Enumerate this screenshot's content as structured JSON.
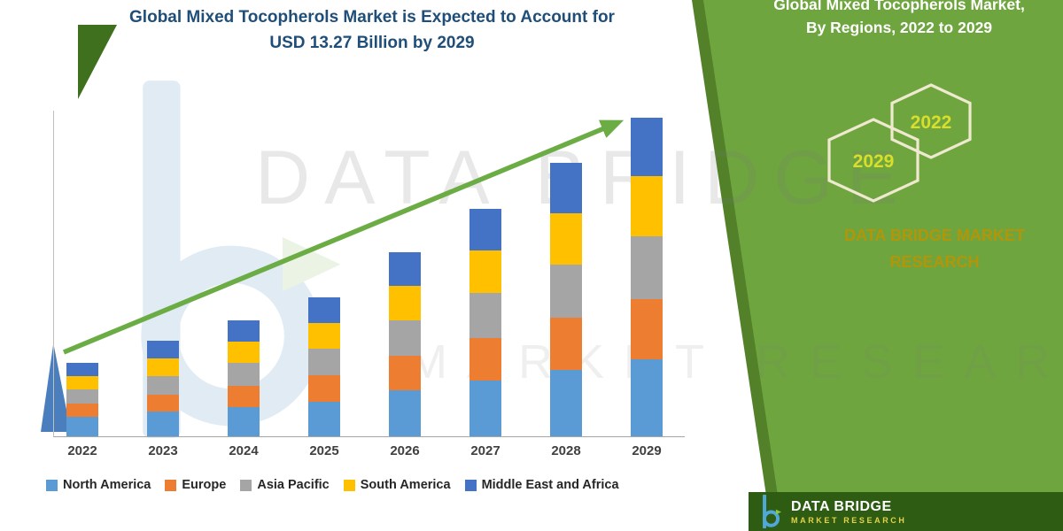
{
  "main_title": {
    "line1": "Global Mixed Tocopherols Market is Expected to Account for",
    "line2": "USD 13.27 Billion by 2029"
  },
  "right_panel": {
    "title_line1": "Global Mixed Tocopherols Market,",
    "title_line2": "By Regions, 2022 to 2029",
    "hexagon_left_label": "2029",
    "hexagon_right_label": "2022",
    "brand_line1": "DATA BRIDGE MARKET",
    "brand_line2": "RESEARCH",
    "panel_color": "#6FA53F",
    "brand_text_color": "#B3950A",
    "hexagon_label_color": "#D9DE2B"
  },
  "footer": {
    "brand": "DATA BRIDGE",
    "tagline": "MARKET RESEARCH",
    "bar_color": "#2E5C13"
  },
  "watermark": {
    "line1": "DATA BRIDGE",
    "line2": "MARKET RESEARCH"
  },
  "chart_data": {
    "type": "bar",
    "stacked": true,
    "title": "Global Mixed Tocopherols Market is Expected to Account for USD 13.27 Billion by 2029",
    "unit": "USD Billion",
    "categories": [
      "2022",
      "2023",
      "2024",
      "2025",
      "2026",
      "2027",
      "2028",
      "2029"
    ],
    "series": [
      {
        "name": "North America",
        "color": "#5B9BD5",
        "values": [
          0.82,
          1.02,
          1.22,
          1.45,
          1.9,
          2.32,
          2.77,
          3.2
        ]
      },
      {
        "name": "Europe",
        "color": "#ED7D31",
        "values": [
          0.55,
          0.73,
          0.9,
          1.08,
          1.44,
          1.79,
          2.16,
          2.53
        ]
      },
      {
        "name": "Asia Pacific",
        "color": "#A5A5A5",
        "values": [
          0.58,
          0.76,
          0.93,
          1.12,
          1.49,
          1.85,
          2.23,
          2.61
        ]
      },
      {
        "name": "South America",
        "color": "#FFC000",
        "values": [
          0.55,
          0.73,
          0.89,
          1.07,
          1.43,
          1.77,
          2.14,
          2.5
        ]
      },
      {
        "name": "Middle East and Africa",
        "color": "#4472C4",
        "values": [
          0.56,
          0.74,
          0.89,
          1.07,
          1.41,
          1.74,
          2.09,
          2.43
        ]
      }
    ],
    "totals": [
      3.06,
      3.98,
      4.83,
      5.79,
      7.67,
      9.47,
      11.39,
      13.27
    ],
    "final_value_label": "USD 13.27 Billion by 2029",
    "ylim": [
      0,
      14
    ],
    "grid": false,
    "y_axis_labels_visible": false,
    "legend_position": "bottom",
    "annotations": [
      "green upward trend arrow across bars"
    ],
    "arrow_color": "#6BAC45"
  }
}
